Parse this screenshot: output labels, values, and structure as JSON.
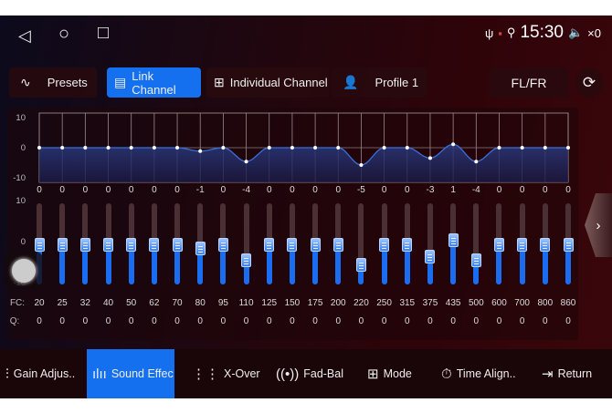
{
  "system": {
    "time": "15:30",
    "volume": "×0",
    "back_icon": "◁",
    "home_icon": "○",
    "recents_icon": "□"
  },
  "tabs": [
    {
      "label": "Presets",
      "icon": "pulse-icon",
      "glyph": "∿",
      "active": false
    },
    {
      "label": "Link Channel",
      "icon": "link-channel-icon",
      "glyph": "▤",
      "active": true
    },
    {
      "label": "Individual Channel",
      "icon": "grid-icon",
      "glyph": "⊞",
      "active": false
    },
    {
      "label": "Profile 1",
      "icon": "user-icon",
      "glyph": "👤",
      "active": false
    }
  ],
  "channel": "FL/FR",
  "graph_axis": [
    "10",
    "0",
    "-10"
  ],
  "slider_axis": [
    "10",
    "0",
    "-10"
  ],
  "fc_label": "FC:",
  "q_label": "Q:",
  "bands": {
    "fc": [
      "20",
      "25",
      "32",
      "40",
      "50",
      "62",
      "70",
      "80",
      "95",
      "110",
      "125",
      "150",
      "175",
      "200",
      "220",
      "250",
      "315",
      "375",
      "435",
      "500",
      "600",
      "700",
      "800",
      "860"
    ],
    "gain": [
      0,
      0,
      0,
      0,
      0,
      0,
      0,
      -1,
      0,
      -4,
      0,
      0,
      0,
      0,
      -5,
      0,
      0,
      -3,
      1,
      -4,
      0,
      0,
      0,
      0
    ],
    "q": [
      "0",
      "0",
      "0",
      "0",
      "0",
      "0",
      "0",
      "0",
      "0",
      "0",
      "0",
      "0",
      "0",
      "0",
      "0",
      "0",
      "0",
      "0",
      "0",
      "0",
      "0",
      "0",
      "0",
      "0"
    ],
    "range": [
      -10,
      10
    ]
  },
  "bottom_nav": [
    {
      "label": "Gain Adjus..",
      "glyph": "⫶",
      "icon": "sliders-icon",
      "active": false
    },
    {
      "label": "Sound Effec",
      "glyph": "ılıı",
      "icon": "waveform-icon",
      "active": true
    },
    {
      "label": "X-Over",
      "glyph": "⋮⋮",
      "icon": "bars-icon",
      "active": false
    },
    {
      "label": "Fad-Bal",
      "glyph": "((•))",
      "icon": "speaker-icon",
      "active": false
    },
    {
      "label": "Mode",
      "glyph": "⊞",
      "icon": "mode-icon",
      "active": false
    },
    {
      "label": "Time Align..",
      "glyph": "⏱",
      "icon": "timer-icon",
      "active": false
    },
    {
      "label": "Return",
      "glyph": "⇥",
      "icon": "return-icon",
      "active": false
    }
  ],
  "colors": {
    "accent": "#1570ef",
    "curve": "#3b6fd8"
  }
}
